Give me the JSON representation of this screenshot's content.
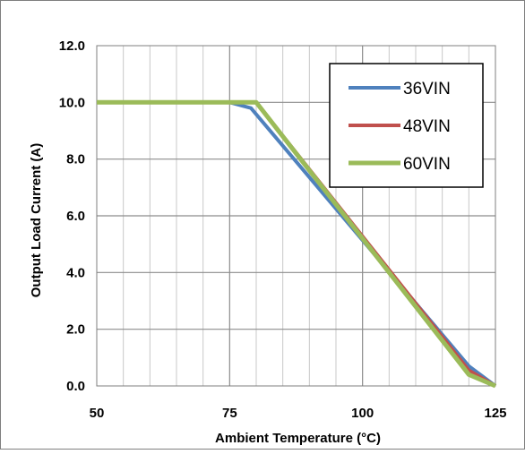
{
  "chart_data": {
    "type": "line",
    "title": "",
    "xlabel": "Ambient Temperature (°C)",
    "ylabel": "Output Load Current (A)",
    "xlim": [
      50,
      125
    ],
    "ylim": [
      0,
      12
    ],
    "x_minor_step": 5,
    "x_ticks": [
      {
        "value": 50,
        "label": "50"
      },
      {
        "value": 75,
        "label": "75"
      },
      {
        "value": 100,
        "label": "100"
      },
      {
        "value": 125,
        "label": "125"
      }
    ],
    "y_ticks": [
      {
        "value": 0,
        "label": "0.0"
      },
      {
        "value": 2,
        "label": "2.0"
      },
      {
        "value": 4,
        "label": "4.0"
      },
      {
        "value": 6,
        "label": "6.0"
      },
      {
        "value": 8,
        "label": "8.0"
      },
      {
        "value": 10,
        "label": "10.0"
      },
      {
        "value": 12,
        "label": "12.0"
      }
    ],
    "grid": true,
    "legend_position": "top-right",
    "series": [
      {
        "name": "36VIN",
        "color": "#4f81bd",
        "x": [
          50,
          75,
          79,
          120,
          125
        ],
        "y": [
          10.0,
          10.0,
          9.8,
          0.7,
          0.0
        ]
      },
      {
        "name": "48VIN",
        "color": "#c0504d",
        "x": [
          50,
          75,
          80,
          120,
          125
        ],
        "y": [
          10.0,
          10.0,
          10.0,
          0.55,
          0.0
        ]
      },
      {
        "name": "60VIN",
        "color": "#9bbb59",
        "x": [
          50,
          75,
          80,
          120,
          125
        ],
        "y": [
          10.0,
          10.0,
          10.0,
          0.4,
          0.0
        ]
      }
    ]
  }
}
